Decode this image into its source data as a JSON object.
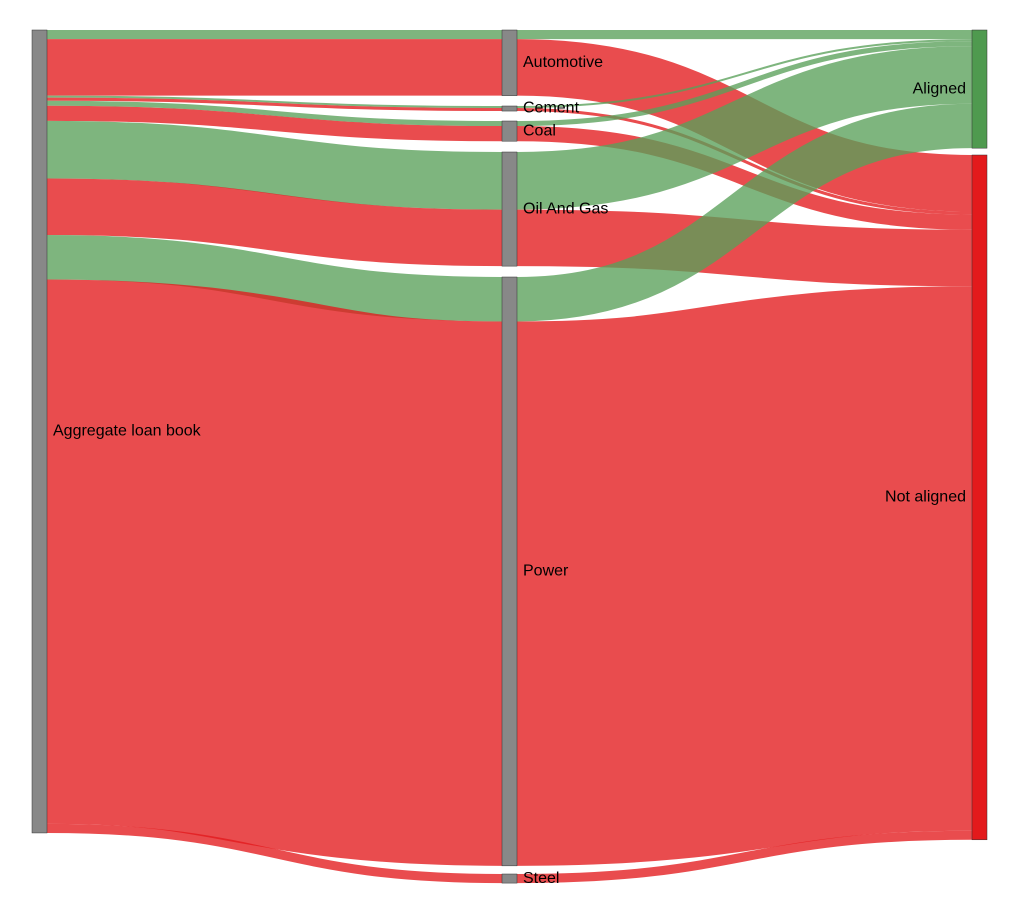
{
  "chart_data": {
    "type": "sankey",
    "nodes": [
      {
        "id": "book",
        "label": "Aggregate loan book",
        "color": "#888888"
      },
      {
        "id": "automotive",
        "label": "Automotive",
        "color": "#888888"
      },
      {
        "id": "cement",
        "label": "Cement",
        "color": "#888888"
      },
      {
        "id": "coal",
        "label": "Coal",
        "color": "#888888"
      },
      {
        "id": "oil_gas",
        "label": "Oil And Gas",
        "color": "#888888"
      },
      {
        "id": "power",
        "label": "Power",
        "color": "#888888"
      },
      {
        "id": "steel",
        "label": "Steel",
        "color": "#888888"
      },
      {
        "id": "aligned",
        "label": "Aligned",
        "color": "#4f9a4f"
      },
      {
        "id": "not_aligned",
        "label": "Not aligned",
        "color": "#e31a1c"
      }
    ],
    "links": [
      {
        "source": "book",
        "target": "automotive",
        "status": "aligned",
        "value": 0.9
      },
      {
        "source": "book",
        "target": "automotive",
        "status": "not_aligned",
        "value": 5.6
      },
      {
        "source": "book",
        "target": "cement",
        "status": "aligned",
        "value": 0.2
      },
      {
        "source": "book",
        "target": "cement",
        "status": "not_aligned",
        "value": 0.3
      },
      {
        "source": "book",
        "target": "coal",
        "status": "aligned",
        "value": 0.5
      },
      {
        "source": "book",
        "target": "coal",
        "status": "not_aligned",
        "value": 1.5
      },
      {
        "source": "book",
        "target": "oil_gas",
        "status": "aligned",
        "value": 5.7
      },
      {
        "source": "book",
        "target": "oil_gas",
        "status": "not_aligned",
        "value": 5.6
      },
      {
        "source": "book",
        "target": "power",
        "status": "aligned",
        "value": 4.4
      },
      {
        "source": "book",
        "target": "power",
        "status": "not_aligned",
        "value": 53.9
      },
      {
        "source": "book",
        "target": "steel",
        "status": "not_aligned",
        "value": 0.9
      },
      {
        "source": "automotive",
        "target": "aligned",
        "status": "aligned",
        "value": 0.9
      },
      {
        "source": "automotive",
        "target": "not_aligned",
        "status": "not_aligned",
        "value": 5.6
      },
      {
        "source": "cement",
        "target": "aligned",
        "status": "aligned",
        "value": 0.2
      },
      {
        "source": "cement",
        "target": "not_aligned",
        "status": "not_aligned",
        "value": 0.3
      },
      {
        "source": "coal",
        "target": "aligned",
        "status": "aligned",
        "value": 0.5
      },
      {
        "source": "coal",
        "target": "not_aligned",
        "status": "not_aligned",
        "value": 1.5
      },
      {
        "source": "oil_gas",
        "target": "aligned",
        "status": "aligned",
        "value": 5.7
      },
      {
        "source": "oil_gas",
        "target": "not_aligned",
        "status": "not_aligned",
        "value": 5.6
      },
      {
        "source": "power",
        "target": "aligned",
        "status": "aligned",
        "value": 4.4
      },
      {
        "source": "power",
        "target": "not_aligned",
        "status": "not_aligned",
        "value": 53.9
      },
      {
        "source": "steel",
        "target": "not_aligned",
        "status": "not_aligned",
        "value": 0.9
      }
    ],
    "link_colors": {
      "aligned": "#5aa05a",
      "not_aligned": "#e31a1c"
    },
    "link_opacity": 0.78
  }
}
